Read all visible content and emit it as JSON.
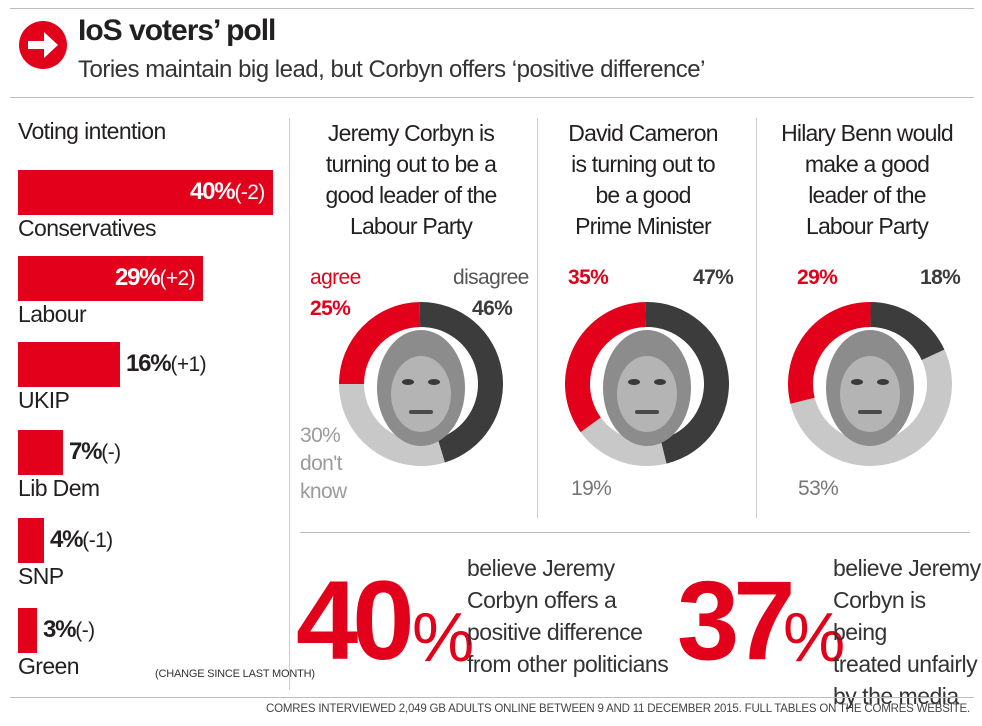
{
  "header": {
    "title": "IoS voters’ poll",
    "subtitle": "Tories maintain big lead, but Corbyn offers ‘positive difference’"
  },
  "colors": {
    "accent": "#e2001a",
    "dark": "#3c3c3c",
    "light": "#c8c8c8"
  },
  "chart_data": [
    {
      "type": "bar",
      "title": "Voting intention",
      "orientation": "horizontal",
      "categories": [
        "Conservatives",
        "Labour",
        "UKIP",
        "Lib Dem",
        "SNP",
        "Green"
      ],
      "values": [
        40,
        29,
        16,
        7,
        4,
        3
      ],
      "value_labels": [
        "40%",
        "29%",
        "16%",
        "7%",
        "4%",
        "3%"
      ],
      "changes": [
        "(-2)",
        "(+2)",
        "(+1)",
        "(-)",
        "(-1)",
        "(-)"
      ],
      "note": "(CHANGE SINCE LAST MONTH)"
    },
    {
      "type": "pie",
      "title": "Jeremy Corbyn is turning out to be a good leader of the Labour Party",
      "labels": [
        "agree",
        "disagree",
        "don't know"
      ],
      "values": [
        25,
        46,
        30
      ],
      "value_labels": [
        "25%",
        "46%",
        "30%"
      ]
    },
    {
      "type": "pie",
      "title": "David Cameron is turning out to be a good Prime Minister",
      "values": [
        35,
        47,
        19
      ],
      "value_labels": [
        "35%",
        "47%",
        "19%"
      ]
    },
    {
      "type": "pie",
      "title": "Hilary Benn would make a good leader of the Labour Party",
      "values": [
        29,
        18,
        53
      ],
      "value_labels": [
        "29%",
        "18%",
        "53%"
      ]
    }
  ],
  "donut_titles": [
    [
      "Jeremy Corbyn is",
      "turning out to be a",
      "good leader of the",
      "Labour Party"
    ],
    [
      "David Cameron",
      "is turning out to",
      "be a good",
      "Prime Minister"
    ],
    [
      "Hilary Benn would",
      "make a good",
      "leader of the",
      "Labour Party"
    ]
  ],
  "donut_labels": {
    "agree": "agree",
    "disagree": "disagree",
    "dont_know_1": "don't",
    "dont_know_2": "know"
  },
  "stats": [
    {
      "number": "40",
      "unit": "%",
      "lines": [
        "believe Jeremy",
        "Corbyn offers a",
        "positive difference",
        "from other politicians"
      ]
    },
    {
      "number": "37",
      "unit": "%",
      "lines": [
        "believe Jeremy",
        "Corbyn is being",
        "treated unfairly",
        "by the media"
      ]
    }
  ],
  "footer": "COMRES INTERVIEWED 2,049 GB ADULTS ONLINE BETWEEN 9 AND 11 DECEMBER 2015. FULL TABLES ON THE COMRES WEBSITE."
}
